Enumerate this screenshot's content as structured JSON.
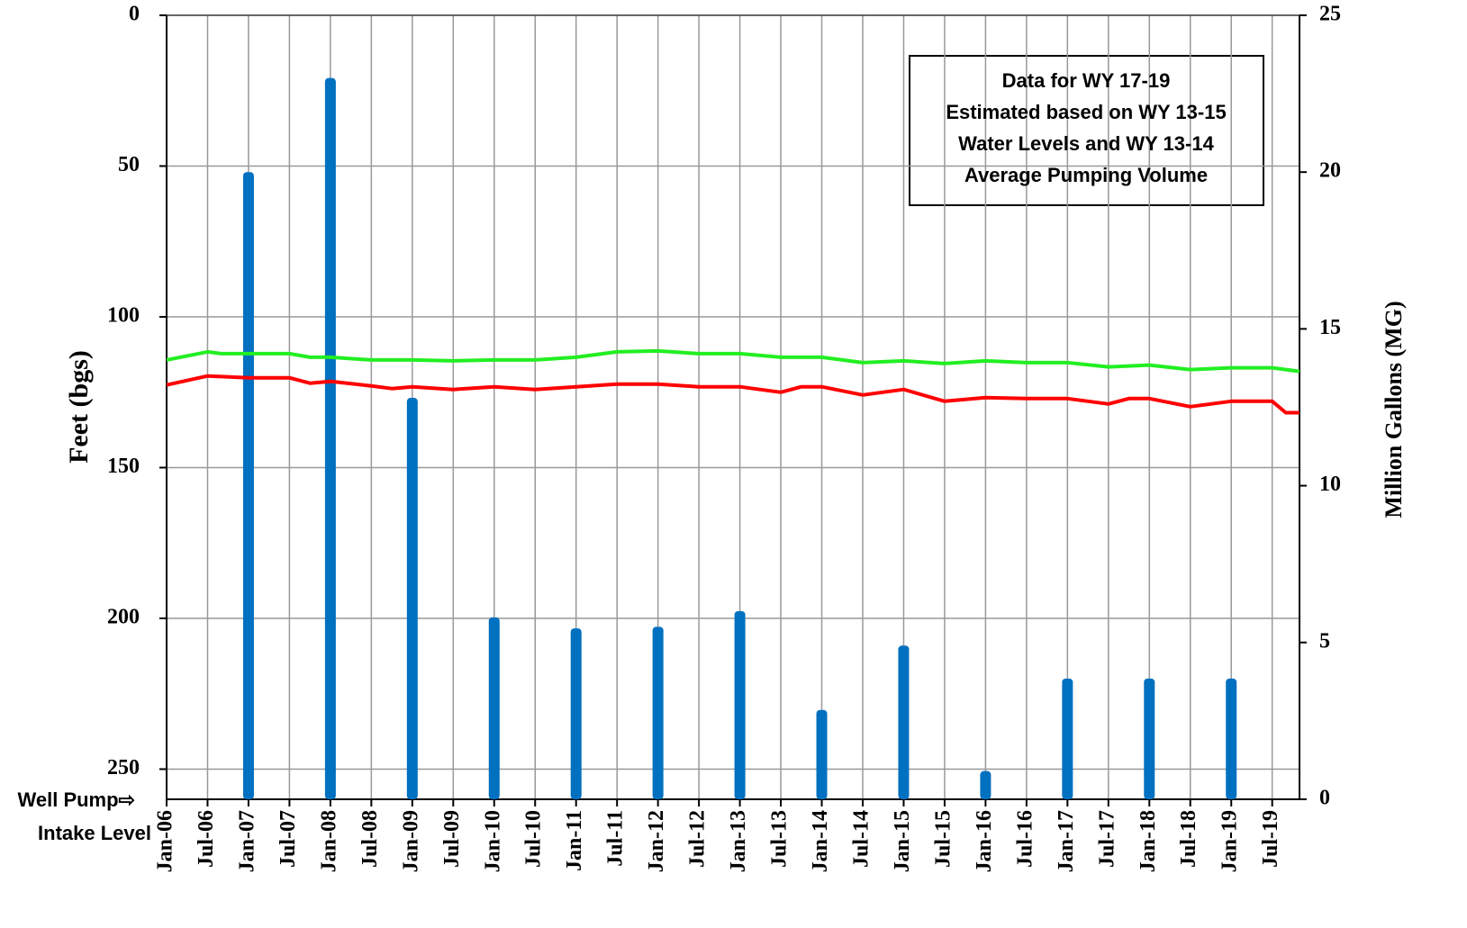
{
  "chart_data": {
    "type": "combo",
    "ylabel": "Feet (bgs)",
    "y2label": "Million Gallons (MG)",
    "annotation": [
      "Data for WY 17-19",
      "Estimated based on WY 13-15",
      "Water Levels and  WY 13-14",
      "Average Pumping Volume"
    ],
    "pump_label": [
      "Well Pump⇨",
      "Intake Level"
    ],
    "ylim": [
      0,
      260
    ],
    "y_inverted": true,
    "yticks": [
      0,
      50,
      100,
      150,
      200,
      250
    ],
    "y2lim": [
      0,
      25
    ],
    "y2ticks": [
      0,
      5,
      10,
      15,
      20,
      25
    ],
    "xlim": [
      "2006-01",
      "2019-11"
    ],
    "xticks": [
      {
        "value": "2006-01",
        "label": "Jan-06"
      },
      {
        "value": "2006-07",
        "label": "Jul-06"
      },
      {
        "value": "2007-01",
        "label": "Jan-07"
      },
      {
        "value": "2007-07",
        "label": "Jul-07"
      },
      {
        "value": "2008-01",
        "label": "Jan-08"
      },
      {
        "value": "2008-07",
        "label": "Jul-08"
      },
      {
        "value": "2009-01",
        "label": "Jan-09"
      },
      {
        "value": "2009-07",
        "label": "Jul-09"
      },
      {
        "value": "2010-01",
        "label": "Jan-10"
      },
      {
        "value": "2010-07",
        "label": "Jul-10"
      },
      {
        "value": "2011-01",
        "label": "Jan-11"
      },
      {
        "value": "2011-07",
        "label": "Jul-11"
      },
      {
        "value": "2012-01",
        "label": "Jan-12"
      },
      {
        "value": "2012-07",
        "label": "Jul-12"
      },
      {
        "value": "2013-01",
        "label": "Jan-13"
      },
      {
        "value": "2013-07",
        "label": "Jul-13"
      },
      {
        "value": "2014-01",
        "label": "Jan-14"
      },
      {
        "value": "2014-07",
        "label": "Jul-14"
      },
      {
        "value": "2015-01",
        "label": "Jan-15"
      },
      {
        "value": "2015-07",
        "label": "Jul-15"
      },
      {
        "value": "2016-01",
        "label": "Jan-16"
      },
      {
        "value": "2016-07",
        "label": "Jul-16"
      },
      {
        "value": "2017-01",
        "label": "Jan-17"
      },
      {
        "value": "2017-07",
        "label": "Jul-17"
      },
      {
        "value": "2018-01",
        "label": "Jan-18"
      },
      {
        "value": "2018-07",
        "label": "Jul-18"
      },
      {
        "value": "2019-01",
        "label": "Jan-19"
      },
      {
        "value": "2019-07",
        "label": "Jul-19"
      }
    ],
    "grid": true,
    "series": [
      {
        "type": "bar",
        "axis": "y2",
        "color": "#0070c0",
        "x": [
          "2007-01",
          "2008-01",
          "2009-01",
          "2010-01",
          "2011-01",
          "2012-01",
          "2013-01",
          "2014-01",
          "2015-01",
          "2016-01",
          "2017-01",
          "2018-01",
          "2019-01"
        ],
        "values": [
          20,
          23,
          12.8,
          5.8,
          5.45,
          5.5,
          6,
          2.85,
          4.9,
          0.9,
          3.85,
          3.85,
          3.85
        ]
      },
      {
        "type": "line",
        "color": "#22ee22",
        "x": [
          "2006-01",
          "2006-07",
          "2006-09",
          "2007-07",
          "2007-10",
          "2008-01",
          "2008-07",
          "2009-01",
          "2009-07",
          "2010-01",
          "2010-07",
          "2011-01",
          "2011-07",
          "2012-01",
          "2012-07",
          "2013-01",
          "2013-07",
          "2014-01",
          "2014-07",
          "2015-01",
          "2015-07",
          "2016-01",
          "2016-07",
          "2017-01",
          "2017-07",
          "2018-01",
          "2018-07",
          "2019-01",
          "2019-07",
          "2019-11"
        ],
        "values": [
          114.3,
          111.6,
          112.2,
          112.2,
          113.4,
          113.4,
          114.3,
          114.3,
          114.6,
          114.3,
          114.3,
          113.4,
          111.6,
          111.3,
          112.2,
          112.2,
          113.4,
          113.4,
          115.2,
          114.6,
          115.5,
          114.6,
          115.2,
          115.2,
          116.6,
          116,
          117.5,
          116.9,
          116.9,
          118.1
        ]
      },
      {
        "type": "line",
        "color": "#ff0000",
        "x": [
          "2006-01",
          "2006-07",
          "2007-01",
          "2007-07",
          "2007-10",
          "2008-01",
          "2008-07",
          "2008-10",
          "2009-01",
          "2009-07",
          "2010-01",
          "2010-07",
          "2011-01",
          "2011-07",
          "2012-01",
          "2012-07",
          "2013-01",
          "2013-07",
          "2013-10",
          "2014-01",
          "2014-07",
          "2015-01",
          "2015-07",
          "2016-01",
          "2016-07",
          "2017-01",
          "2017-07",
          "2017-10",
          "2018-01",
          "2018-07",
          "2019-01",
          "2019-07",
          "2019-09",
          "2019-11"
        ],
        "values": [
          122.6,
          119.6,
          120.2,
          120.2,
          122,
          121.4,
          122.9,
          123.8,
          123.2,
          124.1,
          123.2,
          124.1,
          123.2,
          122.3,
          122.3,
          123.2,
          123.2,
          125,
          123.2,
          123.2,
          125.9,
          124.1,
          128,
          126.8,
          127.1,
          127.1,
          128.9,
          127.1,
          127.1,
          129.8,
          128,
          128,
          131.8,
          131.8
        ]
      }
    ]
  }
}
